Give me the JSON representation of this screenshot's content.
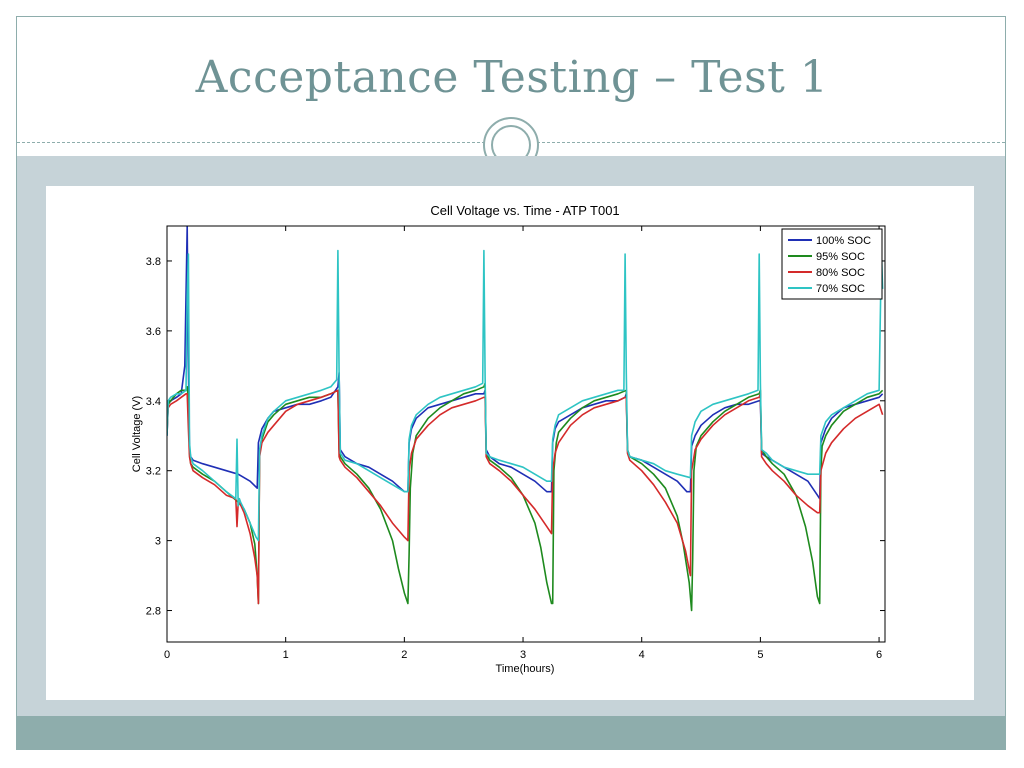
{
  "slide": {
    "title": "Acceptance Testing – Test 1"
  },
  "colors": {
    "accent": "#8eadac",
    "title": "#6f9395",
    "band": "#c6d3d8"
  },
  "chart_data": {
    "type": "line",
    "title": "Cell Voltage vs. Time - ATP T001",
    "xlabel": "Time(hours)",
    "ylabel": "Cell Voltage (V)",
    "xlim": [
      0,
      6.05
    ],
    "ylim": [
      2.71,
      3.9
    ],
    "xticks": [
      0,
      1,
      2,
      3,
      4,
      5,
      6
    ],
    "yticks": [
      2.8,
      3,
      3.2,
      3.4,
      3.6,
      3.8
    ],
    "ytick_labels": [
      "2.8",
      "3",
      "3.2",
      "3.4",
      "3.6",
      "3.8"
    ],
    "grid": false,
    "legend_position": "top-right",
    "series": [
      {
        "name": "100% SOC",
        "color": "#1f2fb5",
        "x": [
          0,
          0.01,
          0.03,
          0.08,
          0.12,
          0.15,
          0.16,
          0.17,
          0.18,
          0.19,
          0.2,
          0.22,
          0.3,
          0.4,
          0.5,
          0.6,
          0.7,
          0.76,
          0.77,
          0.8,
          0.85,
          0.9,
          1.0,
          1.1,
          1.2,
          1.3,
          1.38,
          1.44,
          1.45,
          1.46,
          1.5,
          1.6,
          1.7,
          1.8,
          1.9,
          2.0,
          2.03,
          2.04,
          2.06,
          2.1,
          2.2,
          2.3,
          2.4,
          2.5,
          2.6,
          2.67,
          2.68,
          2.69,
          2.72,
          2.8,
          2.9,
          3.0,
          3.1,
          3.2,
          3.24,
          3.25,
          3.27,
          3.3,
          3.4,
          3.5,
          3.6,
          3.7,
          3.8,
          3.86,
          3.87,
          3.88,
          3.9,
          4.0,
          4.1,
          4.2,
          4.3,
          4.38,
          4.41,
          4.42,
          4.45,
          4.5,
          4.6,
          4.7,
          4.8,
          4.9,
          4.99,
          5.0,
          5.01,
          5.05,
          5.1,
          5.2,
          5.3,
          5.4,
          5.48,
          5.5,
          5.51,
          5.55,
          5.6,
          5.7,
          5.8,
          5.9,
          6.0,
          6.03
        ],
        "y": [
          3.3,
          3.39,
          3.4,
          3.41,
          3.42,
          3.5,
          3.7,
          3.9,
          3.5,
          3.26,
          3.24,
          3.23,
          3.22,
          3.21,
          3.2,
          3.19,
          3.17,
          3.15,
          3.28,
          3.32,
          3.35,
          3.37,
          3.38,
          3.39,
          3.39,
          3.4,
          3.41,
          3.44,
          3.48,
          3.26,
          3.24,
          3.22,
          3.21,
          3.19,
          3.17,
          3.14,
          3.14,
          3.28,
          3.32,
          3.35,
          3.38,
          3.39,
          3.4,
          3.41,
          3.42,
          3.42,
          3.43,
          3.26,
          3.24,
          3.22,
          3.21,
          3.19,
          3.17,
          3.14,
          3.14,
          3.28,
          3.32,
          3.34,
          3.36,
          3.38,
          3.39,
          3.4,
          3.4,
          3.41,
          3.42,
          3.26,
          3.24,
          3.23,
          3.21,
          3.19,
          3.17,
          3.14,
          3.14,
          3.27,
          3.3,
          3.33,
          3.36,
          3.38,
          3.39,
          3.39,
          3.4,
          3.4,
          3.25,
          3.24,
          3.23,
          3.21,
          3.19,
          3.17,
          3.13,
          3.12,
          3.28,
          3.32,
          3.35,
          3.38,
          3.39,
          3.4,
          3.41,
          3.42
        ]
      },
      {
        "name": "95% SOC",
        "color": "#1e8a1e",
        "x": [
          0,
          0.01,
          0.03,
          0.08,
          0.12,
          0.16,
          0.17,
          0.18,
          0.19,
          0.2,
          0.22,
          0.3,
          0.4,
          0.5,
          0.6,
          0.65,
          0.7,
          0.74,
          0.76,
          0.77,
          0.78,
          0.8,
          0.85,
          0.9,
          1.0,
          1.1,
          1.2,
          1.3,
          1.38,
          1.44,
          1.45,
          1.46,
          1.5,
          1.6,
          1.7,
          1.8,
          1.9,
          1.95,
          2.0,
          2.03,
          2.04,
          2.05,
          2.07,
          2.1,
          2.2,
          2.3,
          2.4,
          2.5,
          2.6,
          2.67,
          2.68,
          2.69,
          2.72,
          2.8,
          2.9,
          3.0,
          3.1,
          3.15,
          3.2,
          3.24,
          3.25,
          3.26,
          3.28,
          3.3,
          3.4,
          3.5,
          3.6,
          3.7,
          3.8,
          3.87,
          3.88,
          3.9,
          4.0,
          4.1,
          4.2,
          4.3,
          4.35,
          4.4,
          4.42,
          4.43,
          4.44,
          4.46,
          4.5,
          4.6,
          4.7,
          4.8,
          4.9,
          4.99,
          5.0,
          5.01,
          5.05,
          5.1,
          5.2,
          5.3,
          5.38,
          5.44,
          5.48,
          5.5,
          5.51,
          5.52,
          5.55,
          5.6,
          5.7,
          5.8,
          5.9,
          6.0,
          6.03
        ],
        "y": [
          3.32,
          3.39,
          3.4,
          3.42,
          3.43,
          3.43,
          3.44,
          3.4,
          3.25,
          3.22,
          3.21,
          3.19,
          3.17,
          3.14,
          3.11,
          3.09,
          3.05,
          2.99,
          2.9,
          2.82,
          3.25,
          3.29,
          3.34,
          3.36,
          3.39,
          3.4,
          3.41,
          3.41,
          3.42,
          3.43,
          3.26,
          3.24,
          3.22,
          3.19,
          3.15,
          3.09,
          3.0,
          2.92,
          2.85,
          2.82,
          2.96,
          3.15,
          3.25,
          3.3,
          3.35,
          3.38,
          3.4,
          3.42,
          3.43,
          3.44,
          3.45,
          3.25,
          3.23,
          3.21,
          3.18,
          3.13,
          3.05,
          2.98,
          2.88,
          2.82,
          2.82,
          3.2,
          3.28,
          3.31,
          3.35,
          3.38,
          3.4,
          3.41,
          3.42,
          3.43,
          3.26,
          3.24,
          3.22,
          3.19,
          3.15,
          3.07,
          2.99,
          2.88,
          2.8,
          2.95,
          3.2,
          3.27,
          3.3,
          3.34,
          3.37,
          3.39,
          3.41,
          3.42,
          3.43,
          3.26,
          3.24,
          3.22,
          3.19,
          3.13,
          3.04,
          2.94,
          2.84,
          2.82,
          3.2,
          3.27,
          3.3,
          3.33,
          3.37,
          3.39,
          3.41,
          3.42,
          3.43
        ]
      },
      {
        "name": "80% SOC",
        "color": "#d42a2a",
        "x": [
          0,
          0.01,
          0.03,
          0.08,
          0.12,
          0.16,
          0.17,
          0.18,
          0.19,
          0.2,
          0.22,
          0.3,
          0.4,
          0.5,
          0.58,
          0.59,
          0.6,
          0.61,
          0.65,
          0.7,
          0.74,
          0.76,
          0.77,
          0.78,
          0.8,
          0.85,
          0.9,
          1.0,
          1.1,
          1.2,
          1.3,
          1.38,
          1.44,
          1.45,
          1.46,
          1.5,
          1.6,
          1.7,
          1.8,
          1.9,
          2.0,
          2.03,
          2.04,
          2.06,
          2.1,
          2.2,
          2.3,
          2.4,
          2.5,
          2.6,
          2.67,
          2.68,
          2.69,
          2.72,
          2.8,
          2.9,
          3.0,
          3.1,
          3.2,
          3.24,
          3.25,
          3.27,
          3.3,
          3.4,
          3.5,
          3.6,
          3.7,
          3.8,
          3.86,
          3.87,
          3.88,
          3.9,
          4.0,
          4.1,
          4.2,
          4.3,
          4.37,
          4.41,
          4.42,
          4.45,
          4.5,
          4.6,
          4.7,
          4.8,
          4.9,
          4.99,
          5.0,
          5.01,
          5.05,
          5.1,
          5.2,
          5.3,
          5.4,
          5.48,
          5.5,
          5.51,
          5.55,
          5.6,
          5.7,
          5.8,
          5.9,
          6.0,
          6.03
        ],
        "y": [
          3.31,
          3.38,
          3.39,
          3.4,
          3.41,
          3.42,
          3.42,
          3.32,
          3.24,
          3.22,
          3.2,
          3.18,
          3.16,
          3.13,
          3.12,
          3.04,
          3.11,
          3.11,
          3.08,
          3.02,
          2.95,
          2.9,
          2.82,
          3.24,
          3.28,
          3.31,
          3.33,
          3.37,
          3.39,
          3.4,
          3.41,
          3.42,
          3.43,
          3.24,
          3.23,
          3.21,
          3.18,
          3.14,
          3.1,
          3.05,
          3.01,
          3.0,
          3.2,
          3.25,
          3.29,
          3.33,
          3.36,
          3.38,
          3.39,
          3.4,
          3.41,
          3.41,
          3.24,
          3.22,
          3.2,
          3.17,
          3.13,
          3.09,
          3.04,
          3.02,
          3.2,
          3.25,
          3.28,
          3.33,
          3.36,
          3.38,
          3.39,
          3.4,
          3.41,
          3.41,
          3.25,
          3.23,
          3.2,
          3.16,
          3.11,
          3.05,
          2.97,
          2.9,
          3.2,
          3.26,
          3.29,
          3.33,
          3.36,
          3.38,
          3.4,
          3.41,
          3.42,
          3.24,
          3.22,
          3.2,
          3.17,
          3.13,
          3.1,
          3.08,
          3.08,
          3.2,
          3.25,
          3.28,
          3.32,
          3.35,
          3.37,
          3.39,
          3.36
        ]
      },
      {
        "name": "70% SOC",
        "color": "#2ec4c4",
        "x": [
          0,
          0.01,
          0.03,
          0.08,
          0.12,
          0.16,
          0.17,
          0.18,
          0.19,
          0.2,
          0.22,
          0.3,
          0.4,
          0.5,
          0.58,
          0.59,
          0.6,
          0.61,
          0.62,
          0.65,
          0.7,
          0.75,
          0.77,
          0.78,
          0.8,
          0.85,
          0.9,
          1.0,
          1.1,
          1.2,
          1.3,
          1.38,
          1.43,
          1.44,
          1.45,
          1.46,
          1.5,
          1.6,
          1.7,
          1.8,
          1.9,
          2.0,
          2.03,
          2.04,
          2.06,
          2.1,
          2.2,
          2.3,
          2.4,
          2.5,
          2.6,
          2.66,
          2.67,
          2.68,
          2.69,
          2.72,
          2.8,
          2.9,
          3.0,
          3.1,
          3.2,
          3.24,
          3.25,
          3.27,
          3.3,
          3.4,
          3.5,
          3.6,
          3.7,
          3.8,
          3.85,
          3.86,
          3.87,
          3.88,
          3.9,
          4.0,
          4.1,
          4.2,
          4.3,
          4.41,
          4.42,
          4.45,
          4.5,
          4.6,
          4.7,
          4.8,
          4.9,
          4.98,
          4.99,
          5.0,
          5.01,
          5.05,
          5.1,
          5.2,
          5.3,
          5.4,
          5.48,
          5.5,
          5.51,
          5.55,
          5.6,
          5.7,
          5.8,
          5.9,
          6.0,
          6.02,
          6.03
        ],
        "y": [
          3.3,
          3.4,
          3.41,
          3.42,
          3.42,
          3.43,
          3.7,
          3.82,
          3.28,
          3.24,
          3.22,
          3.2,
          3.17,
          3.14,
          3.12,
          3.29,
          3.1,
          3.12,
          3.11,
          3.09,
          3.05,
          3.01,
          3.0,
          3.26,
          3.3,
          3.35,
          3.37,
          3.4,
          3.41,
          3.42,
          3.43,
          3.44,
          3.46,
          3.83,
          3.48,
          3.25,
          3.23,
          3.22,
          3.2,
          3.18,
          3.16,
          3.14,
          3.14,
          3.29,
          3.33,
          3.36,
          3.39,
          3.41,
          3.42,
          3.43,
          3.44,
          3.45,
          3.83,
          3.47,
          3.25,
          3.24,
          3.23,
          3.22,
          3.21,
          3.19,
          3.17,
          3.17,
          3.29,
          3.33,
          3.36,
          3.38,
          3.4,
          3.41,
          3.42,
          3.43,
          3.43,
          3.82,
          3.48,
          3.26,
          3.24,
          3.23,
          3.22,
          3.2,
          3.19,
          3.18,
          3.3,
          3.34,
          3.37,
          3.39,
          3.4,
          3.41,
          3.42,
          3.43,
          3.82,
          3.45,
          3.26,
          3.25,
          3.23,
          3.21,
          3.2,
          3.19,
          3.19,
          3.19,
          3.3,
          3.34,
          3.36,
          3.38,
          3.4,
          3.42,
          3.43,
          3.83,
          3.72
        ]
      }
    ]
  }
}
